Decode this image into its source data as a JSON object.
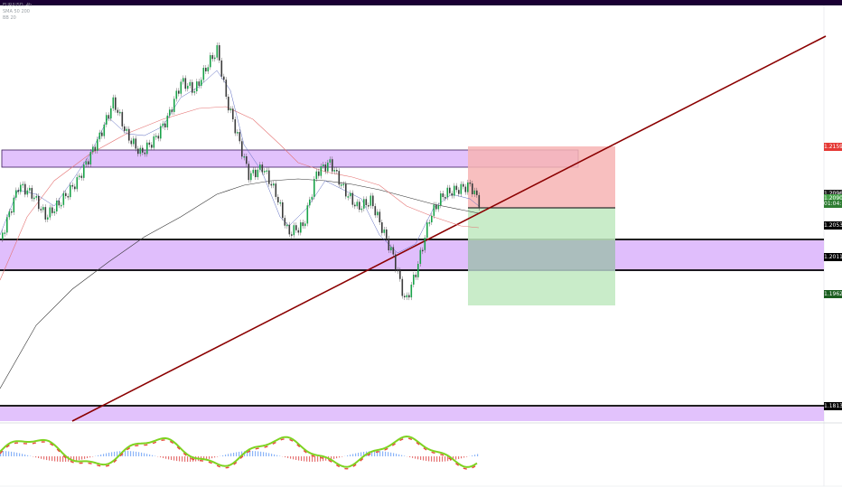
{
  "legend": {
    "line1": "EUR/USD, 4h",
    "line2": "SMA 50 200",
    "line3": "BB 20"
  },
  "price_tags": [
    {
      "label": "1.21594",
      "price": 1.21594,
      "color": "#e53935"
    },
    {
      "label": "1.20967",
      "price": 1.20967,
      "color": "#1f1f1f"
    },
    {
      "label": "1.20907",
      "price": 1.20907,
      "color": "#43a047"
    },
    {
      "label": "01:04:16",
      "price": 1.2083,
      "color": "#2e7d32"
    },
    {
      "label": "1.20537",
      "price": 1.20537,
      "color": "#000000"
    },
    {
      "label": "1.20113",
      "price": 1.20113,
      "color": "#000000"
    },
    {
      "label": "1.19626",
      "price": 1.19626,
      "color": "#1b5e20"
    },
    {
      "label": "1.18138",
      "price": 1.18138,
      "color": "#000000"
    }
  ],
  "colors": {
    "zone": "#cf9ef7",
    "trendline": "#8b0000",
    "stop_zone": "#f7b4b4",
    "target_zone": "#bfe9bf",
    "bull": "#1aa34a",
    "bear": "#e53935"
  }
}
